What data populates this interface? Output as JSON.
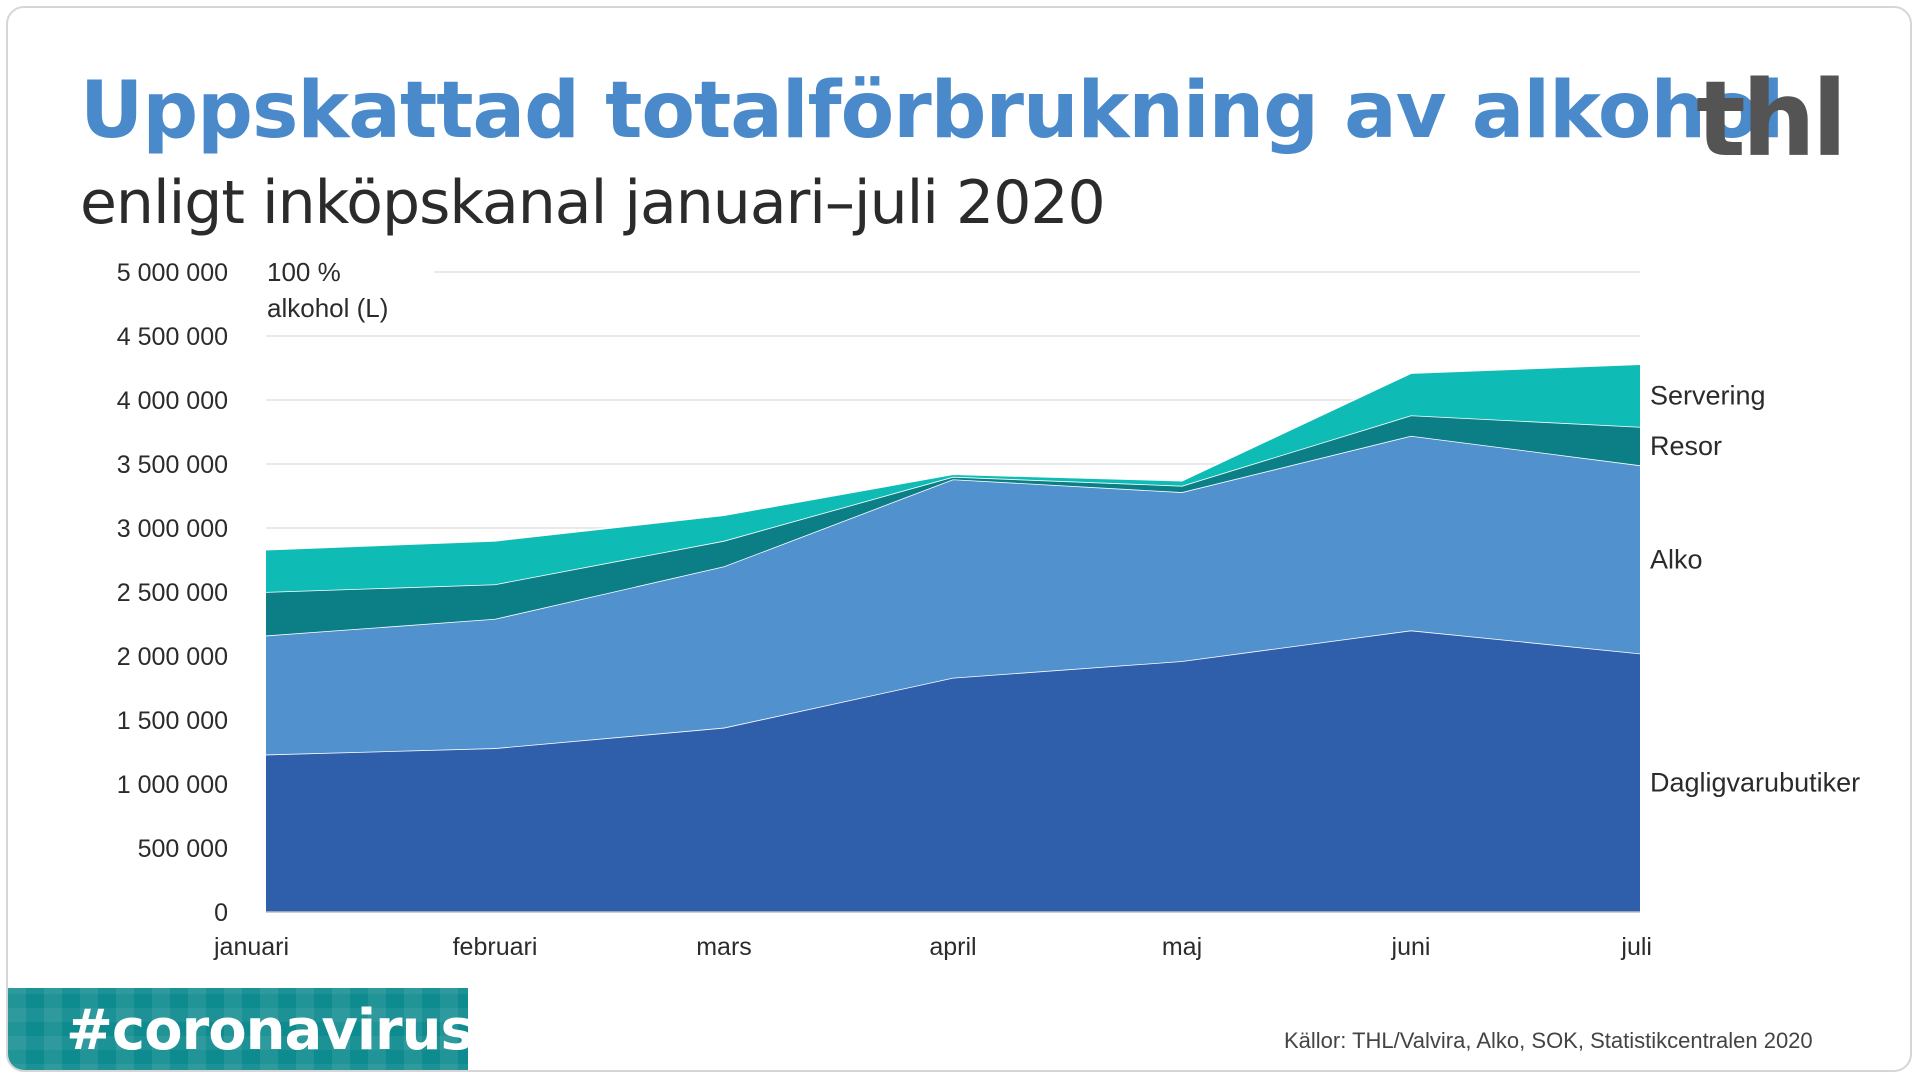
{
  "header": {
    "title": "Uppskattad totalförbrukning av alkohol",
    "subtitle": "enligt inköpskanal januari–juli 2020",
    "logo": "thl"
  },
  "footer": {
    "hashtag": "#coronavirus",
    "source": "Källor: THL/Valvira, Alko, SOK, Statistikcentralen 2020"
  },
  "chart_data": {
    "type": "area",
    "stacked": true,
    "ylabel": [
      "100 %",
      "alkohol (L)"
    ],
    "ylim": [
      0,
      5000000
    ],
    "yticks": [
      0,
      500000,
      1000000,
      1500000,
      2000000,
      2500000,
      3000000,
      3500000,
      4000000,
      4500000,
      5000000
    ],
    "ytick_labels": [
      "0",
      "500 000",
      "1 000 000",
      "1 500 000",
      "2 000 000",
      "2 500 000",
      "3 000 000",
      "3 500 000",
      "4 000 000",
      "4 500 000",
      "5 000 000"
    ],
    "grid": true,
    "categories": [
      "januari",
      "februari",
      "mars",
      "april",
      "maj",
      "juni",
      "juli"
    ],
    "series": [
      {
        "name": "Dagligvarubutiker",
        "color": "#2f5faa",
        "values": [
          1230000,
          1280000,
          1440000,
          1830000,
          1960000,
          2200000,
          2020000
        ]
      },
      {
        "name": "Alko",
        "color": "#5091ce",
        "values": [
          930000,
          1010000,
          1260000,
          1550000,
          1320000,
          1520000,
          1470000
        ]
      },
      {
        "name": "Resor",
        "color": "#0b7f85",
        "values": [
          340000,
          270000,
          200000,
          20000,
          50000,
          160000,
          300000
        ]
      },
      {
        "name": "Servering",
        "color": "#0fbcb5",
        "values": [
          330000,
          340000,
          200000,
          20000,
          40000,
          330000,
          490000
        ]
      }
    ]
  }
}
